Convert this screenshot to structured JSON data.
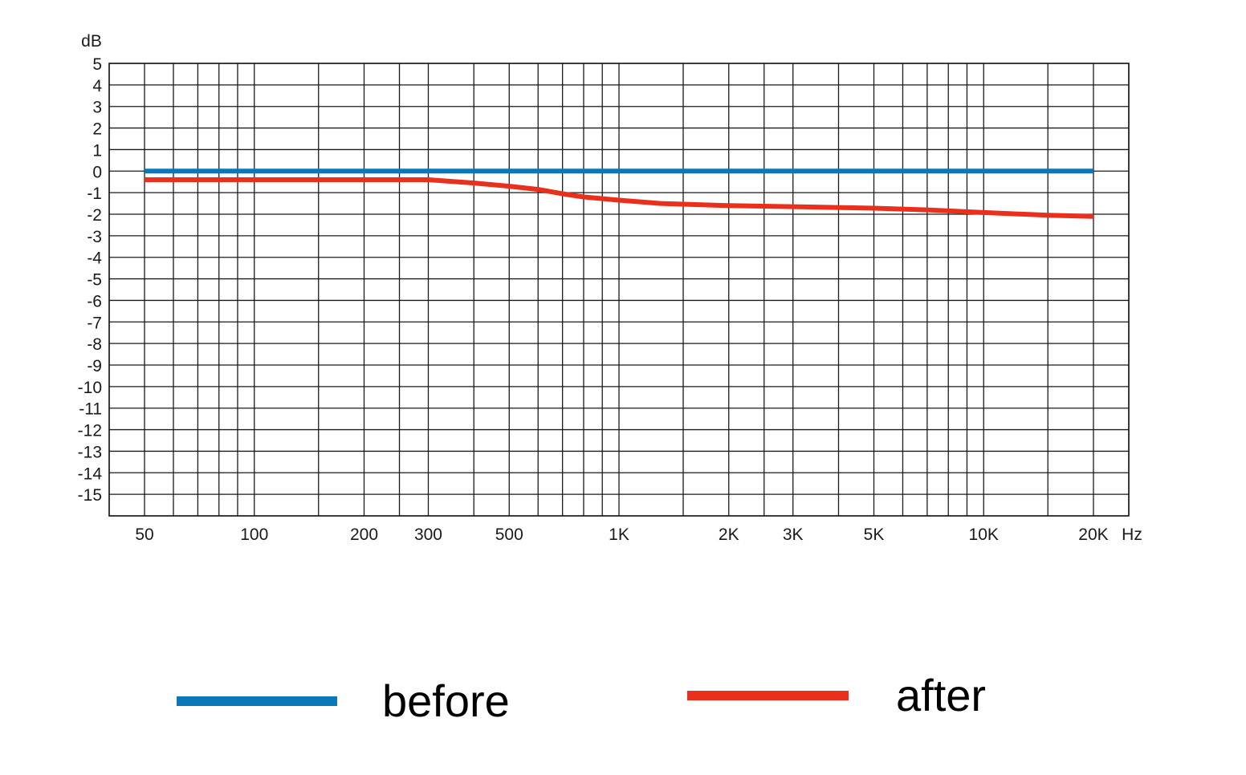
{
  "chart_data": {
    "type": "line",
    "ylabel": "dB",
    "xlabel": "Hz",
    "x_scale": "log",
    "grid": true,
    "legend_position": "bottom",
    "ylim": [
      -16,
      5
    ],
    "xlim": [
      40,
      25000
    ],
    "y_ticks": [
      5,
      4,
      3,
      2,
      1,
      0,
      -1,
      -2,
      -3,
      -4,
      -5,
      -6,
      -7,
      -8,
      -9,
      -10,
      -11,
      -12,
      -13,
      -14,
      -15
    ],
    "x_ticks": [
      {
        "value": 50,
        "label": "50"
      },
      {
        "value": 100,
        "label": "100"
      },
      {
        "value": 200,
        "label": "200"
      },
      {
        "value": 300,
        "label": "300"
      },
      {
        "value": 500,
        "label": "500"
      },
      {
        "value": 1000,
        "label": "1K"
      },
      {
        "value": 2000,
        "label": "2K"
      },
      {
        "value": 3000,
        "label": "3K"
      },
      {
        "value": 5000,
        "label": "5K"
      },
      {
        "value": 10000,
        "label": "10K"
      },
      {
        "value": 20000,
        "label": "20K"
      }
    ],
    "vertical_gridlines": [
      40,
      50,
      60,
      70,
      80,
      90,
      100,
      150,
      200,
      250,
      300,
      400,
      500,
      600,
      700,
      800,
      900,
      1000,
      1500,
      2000,
      2500,
      3000,
      4000,
      5000,
      6000,
      7000,
      8000,
      9000,
      10000,
      15000,
      20000,
      25000
    ],
    "series": [
      {
        "name": "before",
        "color": "#0a77b8",
        "points": [
          [
            50,
            0
          ],
          [
            20000,
            0
          ]
        ]
      },
      {
        "name": "after",
        "color": "#e8301c",
        "points": [
          [
            50,
            -0.4
          ],
          [
            100,
            -0.4
          ],
          [
            200,
            -0.4
          ],
          [
            300,
            -0.4
          ],
          [
            400,
            -0.55
          ],
          [
            500,
            -0.7
          ],
          [
            600,
            -0.85
          ],
          [
            700,
            -1.05
          ],
          [
            800,
            -1.2
          ],
          [
            1000,
            -1.35
          ],
          [
            1300,
            -1.5
          ],
          [
            2000,
            -1.6
          ],
          [
            3000,
            -1.65
          ],
          [
            5000,
            -1.72
          ],
          [
            7000,
            -1.8
          ],
          [
            10000,
            -1.92
          ],
          [
            15000,
            -2.05
          ],
          [
            20000,
            -2.1
          ]
        ]
      }
    ]
  }
}
